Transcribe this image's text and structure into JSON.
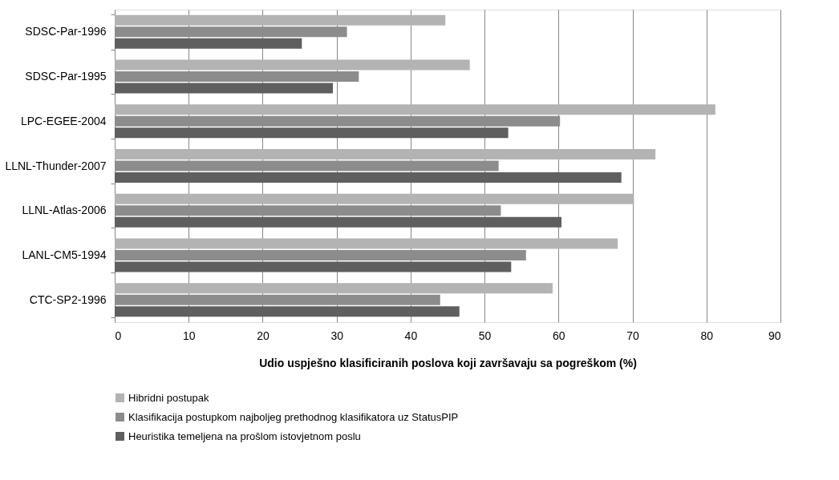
{
  "chart_data": {
    "type": "bar",
    "orientation": "horizontal",
    "xlabel": "Udio uspješno klasificiranih  poslova  koji  završavaju  sa pogreškom (%)",
    "categories": [
      "SDSC-Par-1996",
      "SDSC-Par-1995",
      "LPC-EGEE-2004",
      "LLNL-Thunder-2007",
      "LLNL-Atlas-2006",
      "LANL-CM5-1994",
      "CTC-SP2-1996"
    ],
    "series": [
      {
        "name": "Hibridni postupak",
        "color": "#b3b3b3",
        "values": [
          44.7,
          48.0,
          81.2,
          73.1,
          70.2,
          68.0,
          59.2
        ]
      },
      {
        "name": "Klasifikacija postupkom najboljeg prethodnog klasifikatora  uz StatusPIP",
        "color": "#8c8c8c",
        "values": [
          31.4,
          33.0,
          60.2,
          51.9,
          52.2,
          55.6,
          44.0
        ]
      },
      {
        "name": "Heuristika temeljena na prošlom istovjetnom poslu",
        "color": "#5f5f5f",
        "values": [
          25.3,
          29.5,
          53.2,
          68.5,
          60.4,
          53.6,
          46.6
        ]
      }
    ],
    "xlim": [
      0,
      90
    ],
    "xticks": [
      0,
      10,
      20,
      30,
      40,
      50,
      60,
      70,
      80,
      90
    ],
    "grid": "x",
    "legend": "bottom"
  }
}
